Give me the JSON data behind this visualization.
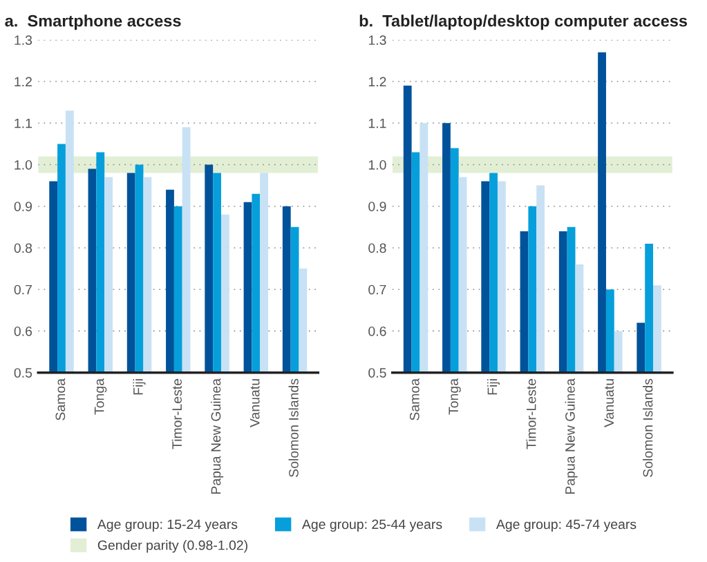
{
  "chart_data": [
    {
      "type": "bar",
      "title": "a.  Smartphone access",
      "categories": [
        "Samoa",
        "Tonga",
        "Fiji",
        "Timor-Leste",
        "Papua New Guinea",
        "Vanuatu",
        "Solomon Islands"
      ],
      "series": [
        {
          "name": "Age group: 15-24 years",
          "color": "#00529b",
          "values": [
            0.96,
            0.99,
            0.98,
            0.94,
            1.0,
            0.91,
            0.9
          ]
        },
        {
          "name": "Age group: 25-44 years",
          "color": "#069fdb",
          "values": [
            1.05,
            1.03,
            1.0,
            0.9,
            0.98,
            0.93,
            0.85
          ]
        },
        {
          "name": "Age group: 45-74 years",
          "color": "#c8e1f4",
          "values": [
            1.13,
            0.97,
            0.97,
            1.09,
            0.88,
            0.98,
            0.75
          ]
        }
      ],
      "ylim": [
        0.5,
        1.3
      ],
      "yticks": [
        0.5,
        0.6,
        0.7,
        0.8,
        0.9,
        {
          "value": 1,
          "label": "1.0"
        },
        1.1,
        1.2,
        1.3
      ],
      "bands": [
        {
          "axis": "y",
          "from": 0.98,
          "to": 1.02,
          "label": "Gender parity (0.98-1.02)",
          "color": "#e2efd5"
        }
      ],
      "grid": "y",
      "legend": "bottom"
    },
    {
      "type": "bar",
      "title": "b.  Tablet/laptop/desktop computer access",
      "categories": [
        "Samoa",
        "Tonga",
        "Fiji",
        "Timor-Leste",
        "Papua New Guinea",
        "Vanuatu",
        "Solomon Islands"
      ],
      "series": [
        {
          "color": "#00529b",
          "values": [
            1.19,
            1.1,
            0.96,
            0.84,
            0.84,
            1.27,
            0.62
          ]
        },
        {
          "color": "#069fdb",
          "values": [
            1.03,
            1.04,
            0.98,
            0.9,
            0.85,
            0.7,
            0.81
          ]
        },
        {
          "color": "#c8e1f4",
          "values": [
            1.1,
            0.97,
            0.96,
            0.95,
            0.76,
            0.6,
            0.71
          ]
        }
      ],
      "ylim": [
        0.5,
        1.3
      ],
      "yticks": [
        0.5,
        0.6,
        0.7,
        0.8,
        0.9,
        {
          "value": 1,
          "label": "1.0"
        },
        1.1,
        1.2,
        1.3
      ],
      "bands": [
        {
          "axis": "y",
          "from": 0.98,
          "to": 1.02,
          "color": "#e2efd5"
        }
      ],
      "grid": "y"
    }
  ]
}
